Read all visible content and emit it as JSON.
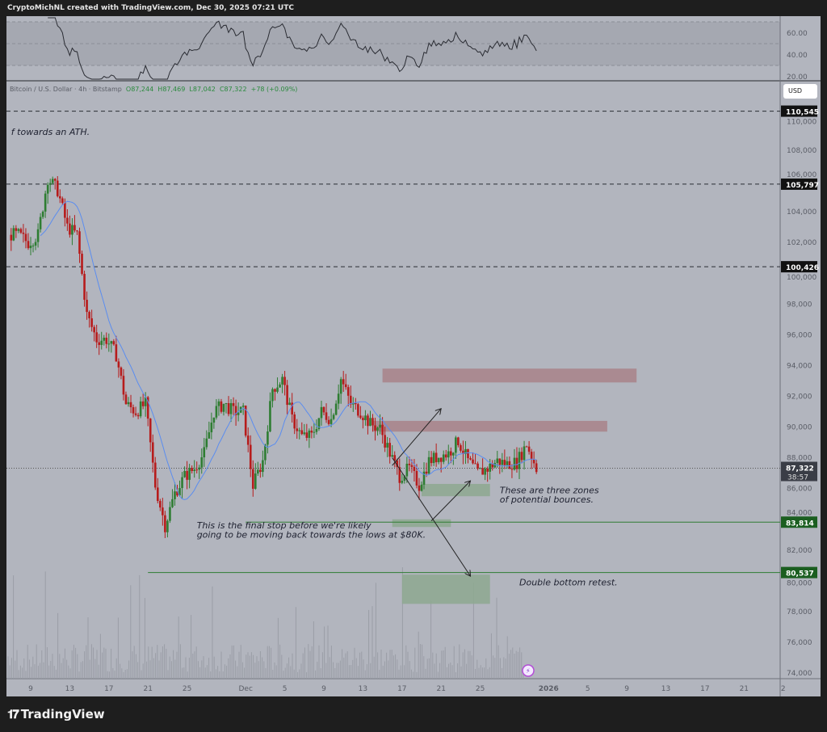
{
  "header": {
    "credit": "CryptoMichNL created with TradingView.com, Dec 30, 2025 07:21 UTC"
  },
  "legend": {
    "symbol": "Bitcoin / U.S. Dollar · 4h · Bitstamp",
    "open": "O87,244",
    "high": "H87,469",
    "low": "L87,042",
    "close": "C87,322",
    "change": "+78 (+0.09%)"
  },
  "currency_button": "USD",
  "brand": "TradingView",
  "colors": {
    "up": "#2e7d32",
    "down": "#b71c1c",
    "ma": "#5b8def",
    "background": "#b2b5be",
    "resistance_zone": "#a8858c",
    "support_zone": "#8fa892",
    "level_line": "#2e7d32"
  },
  "rsi_axis": [
    "60.00",
    "40.00",
    "20.00"
  ],
  "chart_data": {
    "type": "candlestick",
    "title": "Bitcoin / U.S. Dollar · 4h · Bitstamp",
    "interval": "4h",
    "ylim": [
      73500,
      111500
    ],
    "y_ticks": [
      "110,000",
      "108,000",
      "106,000",
      "104,000",
      "102,000",
      "100,000",
      "98,000",
      "96,000",
      "94,000",
      "92,000",
      "90,000",
      "88,000",
      "86,000",
      "84,000",
      "82,000",
      "80,000",
      "78,000",
      "76,000",
      "74,000"
    ],
    "x_ticks": [
      {
        "label": "9",
        "date": "2025-11-09"
      },
      {
        "label": "13",
        "date": "2025-11-13"
      },
      {
        "label": "17",
        "date": "2025-11-17"
      },
      {
        "label": "21",
        "date": "2025-11-21"
      },
      {
        "label": "25",
        "date": "2025-11-25"
      },
      {
        "label": "Dec",
        "date": "2025-12-01"
      },
      {
        "label": "5",
        "date": "2025-12-05"
      },
      {
        "label": "9",
        "date": "2025-12-09"
      },
      {
        "label": "13",
        "date": "2025-12-13"
      },
      {
        "label": "17",
        "date": "2025-12-17"
      },
      {
        "label": "21",
        "date": "2025-12-21"
      },
      {
        "label": "25",
        "date": "2025-12-25"
      },
      {
        "label": "2026",
        "date": "2026-01-01"
      },
      {
        "label": "5",
        "date": "2026-01-05"
      },
      {
        "label": "9",
        "date": "2026-01-09"
      },
      {
        "label": "13",
        "date": "2026-01-13"
      },
      {
        "label": "17",
        "date": "2026-01-17"
      },
      {
        "label": "21",
        "date": "2026-01-21"
      },
      {
        "label": "2",
        "date": "2026-01-25"
      }
    ],
    "start_date": "2025-11-07",
    "daily_close_approx": [
      102500,
      102000,
      102500,
      106200,
      105400,
      103000,
      102500,
      97300,
      95700,
      95700,
      94700,
      91500,
      91000,
      91500,
      86200,
      83600,
      85700,
      86800,
      87300,
      88300,
      91000,
      91500,
      91000,
      91000,
      86200,
      87800,
      92500,
      93100,
      90500,
      89400,
      89400,
      91000,
      90500,
      93100,
      91500,
      91000,
      90200,
      89900,
      88300,
      86800,
      87300,
      86200,
      87800,
      88100,
      88300,
      89100,
      87800,
      87000,
      87300,
      87800,
      87600,
      87700,
      88900,
      87322
    ],
    "current_price": {
      "value": 87322,
      "label": "87,322",
      "countdown": "38:57"
    },
    "levels": [
      {
        "value": 110545,
        "label": "110,545",
        "style": "dashed"
      },
      {
        "value": 105797,
        "label": "105,797",
        "style": "dashed"
      },
      {
        "value": 100426,
        "label": "100,426",
        "style": "dashed"
      },
      {
        "value": 83814,
        "label": "83,814",
        "style": "solid-green",
        "from": "2025-12-01"
      },
      {
        "value": 80537,
        "label": "80,537",
        "style": "solid-green",
        "from": "2025-11-21"
      }
    ],
    "zones": [
      {
        "kind": "resistance",
        "from": "2025-12-15",
        "to": "2026-01-10",
        "low": 92900,
        "high": 93800
      },
      {
        "kind": "resistance",
        "from": "2025-12-14",
        "to": "2026-01-07",
        "low": 89700,
        "high": 90400
      },
      {
        "kind": "support",
        "from": "2025-12-19",
        "to": "2025-12-26",
        "low": 85500,
        "high": 86300
      },
      {
        "kind": "support",
        "from": "2025-12-16",
        "to": "2025-12-22",
        "low": 83500,
        "high": 84000
      },
      {
        "kind": "support",
        "from": "2025-12-17",
        "to": "2025-12-26",
        "low": 78500,
        "high": 80400
      }
    ],
    "arrows": [
      {
        "from": [
          "2025-12-16",
          87500
        ],
        "to": [
          "2025-12-21",
          91200
        ]
      },
      {
        "from": [
          "2025-12-16",
          88000
        ],
        "to": [
          "2025-12-24",
          80300
        ]
      },
      {
        "from": [
          "2025-12-20",
          83900
        ],
        "to": [
          "2025-12-24",
          86500
        ]
      }
    ],
    "annotations": [
      {
        "text": "f towards an ATH.",
        "at": [
          "2025-11-07",
          109000
        ]
      },
      {
        "text": "This is the final stop before we're likely",
        "at": [
          "2025-11-26",
          83400
        ]
      },
      {
        "text": "going to be moving back towards the lows at $80K.",
        "at": [
          "2025-11-26",
          82800
        ]
      },
      {
        "text": "These are three zones",
        "at": [
          "2025-12-27",
          85700
        ]
      },
      {
        "text": "of potential bounces.",
        "at": [
          "2025-12-27",
          85100
        ]
      },
      {
        "text": "Double bottom retest.",
        "at": [
          "2025-12-29",
          79700
        ]
      }
    ],
    "indicators": [
      "RSI",
      "Moving average",
      "Volume"
    ]
  }
}
